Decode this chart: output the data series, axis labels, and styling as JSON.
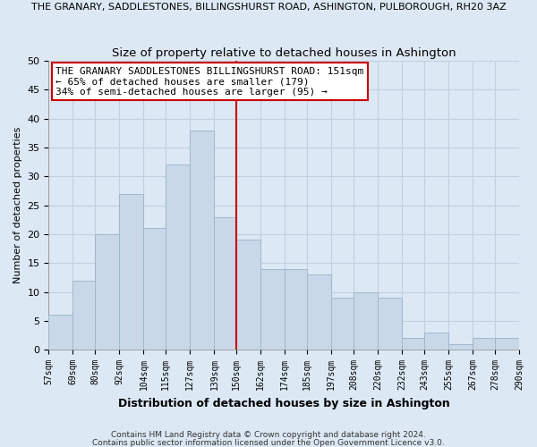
{
  "suptitle": "THE GRANARY, SADDLESTONES, BILLINGSHURST ROAD, ASHINGTON, PULBOROUGH, RH20 3AZ",
  "title": "Size of property relative to detached houses in Ashington",
  "xlabel": "Distribution of detached houses by size in Ashington",
  "ylabel": "Number of detached properties",
  "bin_edges": [
    57,
    69,
    80,
    92,
    104,
    115,
    127,
    139,
    150,
    162,
    174,
    185,
    197,
    208,
    220,
    232,
    243,
    255,
    267,
    278,
    290
  ],
  "counts": [
    6,
    12,
    20,
    27,
    21,
    32,
    38,
    23,
    19,
    14,
    14,
    13,
    9,
    10,
    9,
    2,
    3,
    1,
    2,
    2
  ],
  "bar_color": "#c8d8e8",
  "bar_edge_color": "#a0b8cc",
  "vline_x": 150,
  "vline_color": "#cc0000",
  "annotation_title": "THE GRANARY SADDLESTONES BILLINGSHURST ROAD: 151sqm",
  "annotation_line2": "← 65% of detached houses are smaller (179)",
  "annotation_line3": "34% of semi-detached houses are larger (95) →",
  "annotation_box_color": "#ffffff",
  "annotation_box_edge": "#cc0000",
  "ylim": [
    0,
    50
  ],
  "tick_labels": [
    "57sqm",
    "69sqm",
    "80sqm",
    "92sqm",
    "104sqm",
    "115sqm",
    "127sqm",
    "139sqm",
    "150sqm",
    "162sqm",
    "174sqm",
    "185sqm",
    "197sqm",
    "208sqm",
    "220sqm",
    "232sqm",
    "243sqm",
    "255sqm",
    "267sqm",
    "278sqm",
    "290sqm"
  ],
  "footnote1": "Contains HM Land Registry data © Crown copyright and database right 2024.",
  "footnote2": "Contains public sector information licensed under the Open Government Licence v3.0.",
  "grid_color": "#c0d0e0",
  "background_color": "#dce8f4"
}
